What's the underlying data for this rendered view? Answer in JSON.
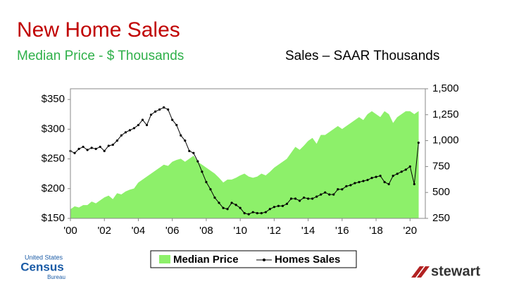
{
  "chart_data": {
    "type": "line",
    "title": "New Home Sales",
    "y_label": "Median Price - $ Thousands",
    "y2_label": "Sales – SAAR Thousands",
    "x": [
      2000,
      2000.25,
      2000.5,
      2000.75,
      2001,
      2001.25,
      2001.5,
      2001.75,
      2002,
      2002.25,
      2002.5,
      2002.75,
      2003,
      2003.25,
      2003.5,
      2003.75,
      2004,
      2004.25,
      2004.5,
      2004.75,
      2005,
      2005.25,
      2005.5,
      2005.75,
      2006,
      2006.25,
      2006.5,
      2006.75,
      2007,
      2007.25,
      2007.5,
      2007.75,
      2008,
      2008.25,
      2008.5,
      2008.75,
      2009,
      2009.25,
      2009.5,
      2009.75,
      2010,
      2010.25,
      2010.5,
      2010.75,
      2011,
      2011.25,
      2011.5,
      2011.75,
      2012,
      2012.25,
      2012.5,
      2012.75,
      2013,
      2013.25,
      2013.5,
      2013.75,
      2014,
      2014.25,
      2014.5,
      2014.75,
      2015,
      2015.25,
      2015.5,
      2015.75,
      2016,
      2016.25,
      2016.5,
      2016.75,
      2017,
      2017.25,
      2017.5,
      2017.75,
      2018,
      2018.25,
      2018.5,
      2018.75,
      2019,
      2019.25,
      2019.5,
      2019.75,
      2020,
      2020.25,
      2020.5
    ],
    "series": [
      {
        "name": "Median Price",
        "type": "area",
        "color": "#8df06a",
        "values": [
          165,
          170,
          168,
          172,
          172,
          178,
          175,
          180,
          185,
          188,
          182,
          192,
          190,
          195,
          198,
          200,
          210,
          215,
          220,
          225,
          230,
          235,
          240,
          238,
          245,
          248,
          250,
          245,
          250,
          255,
          245,
          240,
          235,
          230,
          225,
          218,
          210,
          215,
          215,
          218,
          222,
          225,
          220,
          218,
          220,
          225,
          222,
          228,
          235,
          240,
          245,
          250,
          260,
          270,
          265,
          272,
          280,
          285,
          275,
          290,
          290,
          295,
          300,
          305,
          300,
          305,
          310,
          315,
          320,
          315,
          325,
          330,
          325,
          320,
          330,
          325,
          310,
          320,
          325,
          330,
          330,
          325,
          330
        ]
      },
      {
        "name": "Homes Sales",
        "type": "line",
        "axis": "y2",
        "color": "#000000",
        "values": [
          900,
          880,
          920,
          940,
          910,
          930,
          920,
          940,
          900,
          950,
          960,
          1000,
          1050,
          1080,
          1100,
          1120,
          1150,
          1200,
          1150,
          1250,
          1280,
          1300,
          1320,
          1300,
          1200,
          1150,
          1050,
          1000,
          900,
          880,
          800,
          700,
          600,
          530,
          450,
          400,
          350,
          340,
          400,
          380,
          350,
          300,
          290,
          310,
          300,
          300,
          310,
          340,
          360,
          370,
          370,
          390,
          440,
          440,
          420,
          450,
          440,
          440,
          460,
          480,
          500,
          480,
          480,
          530,
          530,
          560,
          570,
          590,
          600,
          610,
          620,
          640,
          650,
          660,
          600,
          580,
          660,
          680,
          700,
          720,
          750,
          580,
          980
        ]
      }
    ],
    "xlim": [
      2000,
      2020.9
    ],
    "xticks": [
      {
        "value": 2000,
        "label": "'00"
      },
      {
        "value": 2002,
        "label": "'02"
      },
      {
        "value": 2004,
        "label": "'04"
      },
      {
        "value": 2006,
        "label": "'06"
      },
      {
        "value": 2008,
        "label": "'08"
      },
      {
        "value": 2010,
        "label": "'10"
      },
      {
        "value": 2012,
        "label": "'12"
      },
      {
        "value": 2014,
        "label": "'14"
      },
      {
        "value": 2016,
        "label": "'16"
      },
      {
        "value": 2018,
        "label": "'18"
      },
      {
        "value": 2020,
        "label": "'20"
      }
    ],
    "ylim": [
      150,
      368
    ],
    "yticks": [
      {
        "value": 150,
        "label": "$150"
      },
      {
        "value": 200,
        "label": "$200"
      },
      {
        "value": 250,
        "label": "$250"
      },
      {
        "value": 300,
        "label": "$300"
      },
      {
        "value": 350,
        "label": "$350"
      }
    ],
    "y2lim": [
      250,
      1500
    ],
    "y2ticks": [
      250,
      500,
      750,
      {
        "value": 1000,
        "label": "1,000"
      },
      {
        "value": 1250,
        "label": "1,250"
      },
      {
        "value": 1500,
        "label": "1,500"
      }
    ]
  },
  "footer": {
    "census": [
      "United States",
      "Census",
      "Bureau"
    ],
    "brand": "stewart"
  }
}
